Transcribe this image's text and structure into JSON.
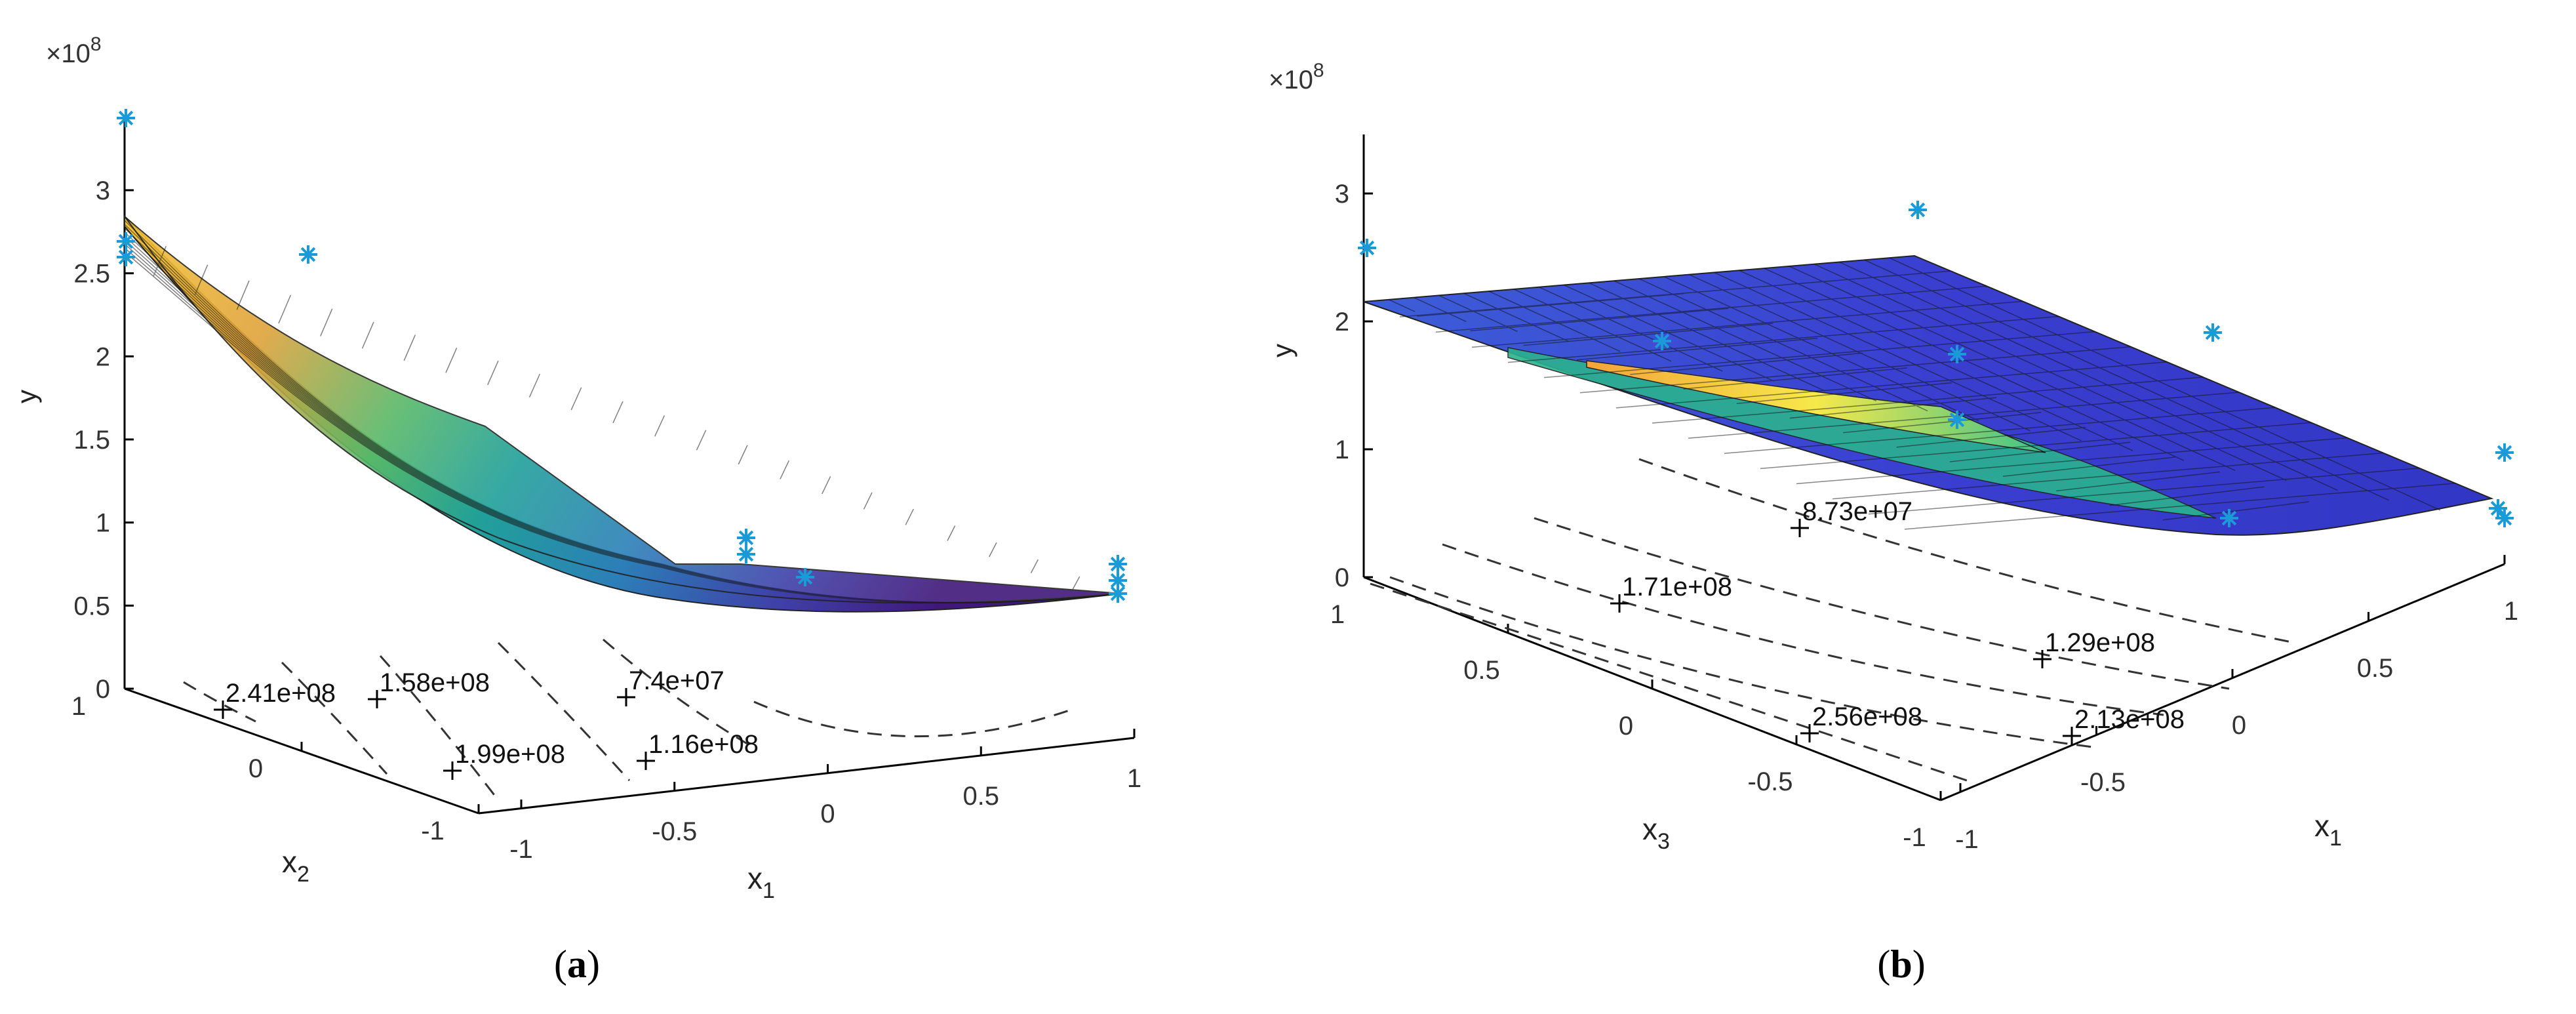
{
  "chart_data": [
    {
      "type": "surface3d",
      "panel_label": "(a)",
      "panel_letter": "a",
      "zlabel": "y",
      "xlabel_main": "x",
      "xlabel_sub": "1",
      "ylabel_main": "x",
      "ylabel_sub": "2",
      "exponent_label": "×10",
      "exponent_power": "8",
      "zticks": [
        {
          "value": 0,
          "label": "0"
        },
        {
          "value": 0.5,
          "label": "0.5"
        },
        {
          "value": 1,
          "label": "1"
        },
        {
          "value": 1.5,
          "label": "1.5"
        },
        {
          "value": 2,
          "label": "2"
        },
        {
          "value": 2.5,
          "label": "2.5"
        },
        {
          "value": 3,
          "label": "3"
        }
      ],
      "xticks": [
        {
          "value": -1,
          "label": "-1"
        },
        {
          "value": -0.5,
          "label": "-0.5"
        },
        {
          "value": 0,
          "label": "0"
        },
        {
          "value": 0.5,
          "label": "0.5"
        },
        {
          "value": 1,
          "label": "1"
        }
      ],
      "yticks": [
        {
          "value": 1,
          "label": "1"
        },
        {
          "value": 0,
          "label": "0"
        },
        {
          "value": -1,
          "label": "-1"
        }
      ],
      "contour_labels": [
        "2.41e+08",
        "1.58e+08",
        "7.4e+07",
        "1.99e+08",
        "1.16e+08"
      ],
      "surface_color": "#2a6fb8",
      "point_color": "#1a9ad6",
      "observed_points": [
        3.4,
        2.68,
        2.58,
        2.6,
        0.92,
        0.82,
        0.68,
        0.75,
        0.65,
        0.58
      ]
    },
    {
      "type": "surface3d",
      "panel_label": "(b)",
      "panel_letter": "b",
      "zlabel": "y",
      "xlabel_main": "x",
      "xlabel_sub": "1",
      "ylabel_main": "x",
      "ylabel_sub": "3",
      "exponent_label": "×10",
      "exponent_power": "8",
      "zticks": [
        {
          "value": 0,
          "label": "0"
        },
        {
          "value": 1,
          "label": "1"
        },
        {
          "value": 2,
          "label": "2"
        },
        {
          "value": 3,
          "label": "3"
        }
      ],
      "xticks": [
        {
          "value": -1,
          "label": "-1"
        },
        {
          "value": -0.5,
          "label": "-0.5"
        },
        {
          "value": 0,
          "label": "0"
        },
        {
          "value": 0.5,
          "label": "0.5"
        },
        {
          "value": 1,
          "label": "1"
        }
      ],
      "yticks": [
        {
          "value": 1,
          "label": "1"
        },
        {
          "value": 0.5,
          "label": "0.5"
        },
        {
          "value": 0,
          "label": "0"
        },
        {
          "value": -0.5,
          "label": "-0.5"
        },
        {
          "value": -1,
          "label": "-1"
        }
      ],
      "contour_labels": [
        "8.73e+07",
        "1.71e+08",
        "1.29e+08",
        "2.13e+08",
        "2.56e+08"
      ],
      "surface_color": "#3a3fd0",
      "point_color": "#1a9ad6",
      "observed_points": [
        2.55,
        1.85,
        2.85,
        1.9,
        0.98,
        0.5,
        0.45,
        1.7,
        1.2
      ]
    }
  ]
}
